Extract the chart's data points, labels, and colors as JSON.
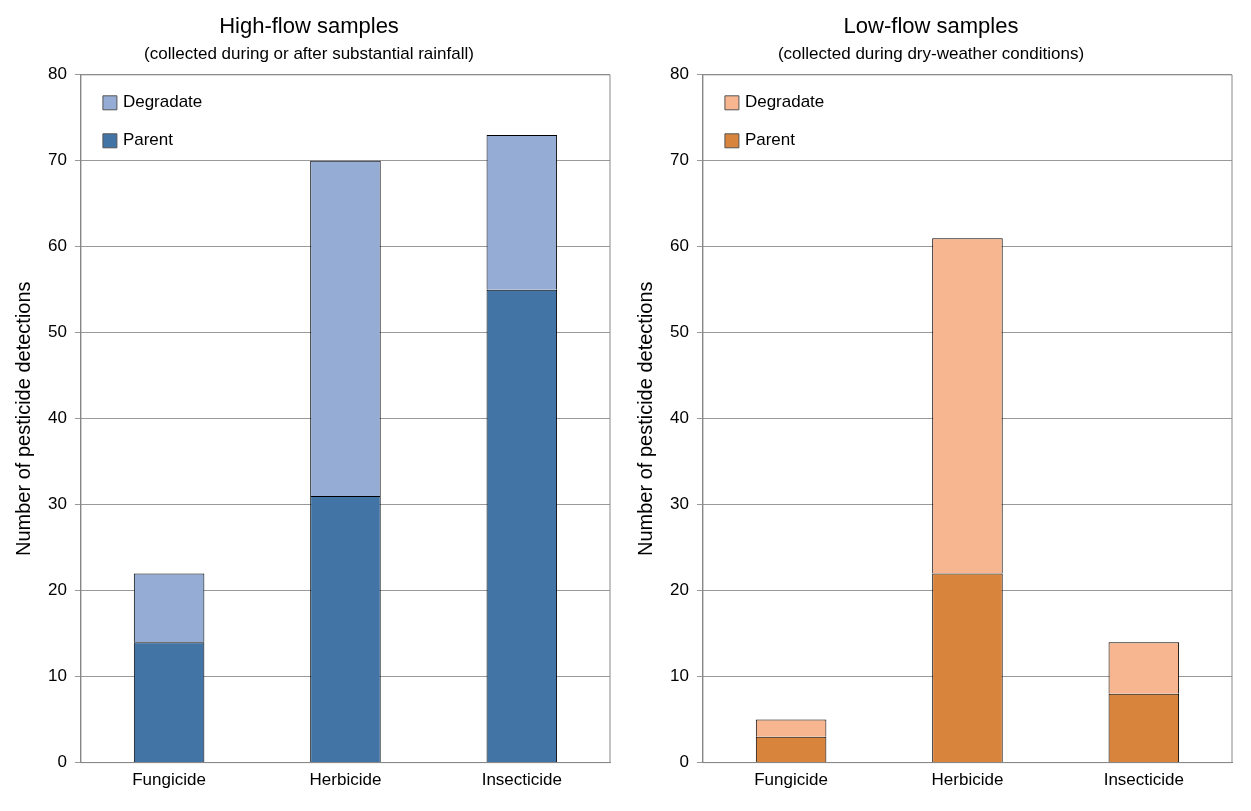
{
  "chart_data": [
    {
      "type": "bar",
      "title": "High-flow samples",
      "subtitle": "(collected during or after substantial rainfall)",
      "ylabel": "Number of pesticide detections",
      "categories": [
        "Fungicide",
        "Herbicide",
        "Insecticide"
      ],
      "stacked": true,
      "series": [
        {
          "name": "Parent",
          "color": "#4374a6",
          "values": [
            14,
            31,
            55
          ]
        },
        {
          "name": "Degradate",
          "color": "#95acd5",
          "values": [
            8,
            39,
            18
          ]
        }
      ],
      "ylim": [
        0,
        80
      ],
      "yticks": [
        0,
        10,
        20,
        30,
        40,
        50,
        60,
        70,
        80
      ],
      "grid": "y",
      "legend": "top left"
    },
    {
      "type": "bar",
      "title": "Low-flow samples",
      "subtitle": "(collected during dry-weather conditions)",
      "ylabel": "Number of pesticide detections",
      "categories": [
        "Fungicide",
        "Herbicide",
        "Insecticide"
      ],
      "stacked": true,
      "series": [
        {
          "name": "Parent",
          "color": "#d9843c",
          "values": [
            3,
            22,
            8
          ]
        },
        {
          "name": "Degradate",
          "color": "#f8b690",
          "values": [
            2,
            39,
            6
          ]
        }
      ],
      "ylim": [
        0,
        80
      ],
      "yticks": [
        0,
        10,
        20,
        30,
        40,
        50,
        60,
        70,
        80
      ],
      "grid": "y",
      "legend": "top left"
    }
  ]
}
